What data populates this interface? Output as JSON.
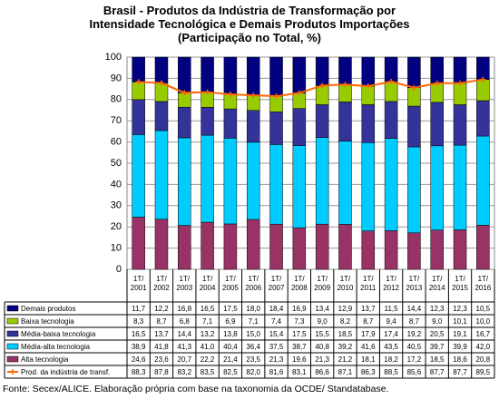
{
  "chart_data": {
    "type": "bar",
    "title": "Brasil - Produtos da Indústria de Transformação por\nIntensidade Tecnológica e Demais Produtos Importações\n(Participação no Total, %)",
    "categories": [
      "1T/\n2001",
      "1T/\n2002",
      "1T/\n2003",
      "1T/\n2004",
      "1T/\n2005",
      "1T/\n2006",
      "1T/\n2007",
      "1T/\n2008",
      "1T/\n2009",
      "1T/\n2010",
      "1T/\n2011",
      "1T/\n2012",
      "1T/\n2013",
      "1T/\n2014",
      "1T/\n2015",
      "1T/\n2016"
    ],
    "stacked": true,
    "ylim": [
      0,
      100
    ],
    "yticks": [
      0,
      10,
      20,
      30,
      40,
      50,
      60,
      70,
      80,
      90,
      100
    ],
    "grid": true,
    "series": [
      {
        "name": "Demais produtos",
        "color": "#000080",
        "values": [
          11.7,
          12.2,
          16.8,
          16.5,
          17.5,
          18.0,
          18.4,
          16.9,
          13.4,
          12.9,
          13.7,
          11.5,
          14.4,
          12.3,
          12.3,
          10.5
        ],
        "value_labels": [
          "11,7",
          "12,2",
          "16,8",
          "16,5",
          "17,5",
          "18,0",
          "18,4",
          "16,9",
          "13,4",
          "12,9",
          "13,7",
          "11,5",
          "14,4",
          "12,3",
          "12,3",
          "10,5"
        ]
      },
      {
        "name": "Baixa tecnologia",
        "color": "#99cc00",
        "values": [
          8.3,
          8.7,
          6.8,
          7.1,
          6.9,
          7.1,
          7.4,
          7.3,
          9.0,
          8.2,
          8.7,
          9.4,
          8.7,
          9.0,
          10.1,
          10.0
        ],
        "value_labels": [
          "8,3",
          "8,7",
          "6,8",
          "7,1",
          "6,9",
          "7,1",
          "7,4",
          "7,3",
          "9,0",
          "8,2",
          "8,7",
          "9,4",
          "8,7",
          "9,0",
          "10,1",
          "10,0"
        ]
      },
      {
        "name": "Média-baixa tecnologia",
        "color": "#333399",
        "values": [
          16.5,
          13.7,
          14.4,
          13.2,
          13.8,
          15.0,
          15.4,
          17.5,
          15.5,
          18.5,
          17.9,
          17.4,
          19.2,
          20.5,
          19.1,
          16.7
        ],
        "value_labels": [
          "16,5",
          "13,7",
          "14,4",
          "13,2",
          "13,8",
          "15,0",
          "15,4",
          "17,5",
          "15,5",
          "18,5",
          "17,9",
          "17,4",
          "19,2",
          "20,5",
          "19,1",
          "16,7"
        ]
      },
      {
        "name": "Média-alta tecnologia",
        "color": "#00ccff",
        "values": [
          38.9,
          41.8,
          41.3,
          41.0,
          40.4,
          36.4,
          37.5,
          38.7,
          40.8,
          39.2,
          41.6,
          43.5,
          40.5,
          39.7,
          39.9,
          42.0
        ],
        "value_labels": [
          "38,9",
          "41,8",
          "41,3",
          "41,0",
          "40,4",
          "36,4",
          "37,5",
          "38,7",
          "40,8",
          "39,2",
          "41,6",
          "43,5",
          "40,5",
          "39,7",
          "39,9",
          "42,0"
        ]
      },
      {
        "name": "Alta tecnologia",
        "color": "#993366",
        "values": [
          24.6,
          23.6,
          20.7,
          22.2,
          21.4,
          23.5,
          21.3,
          19.6,
          21.3,
          21.2,
          18.1,
          18.2,
          17.2,
          18.5,
          18.6,
          20.8
        ],
        "value_labels": [
          "24,6",
          "23,6",
          "20,7",
          "22,2",
          "21,4",
          "23,5",
          "21,3",
          "19,6",
          "21,3",
          "21,2",
          "18,1",
          "18,2",
          "17,2",
          "18,5",
          "18,6",
          "20,8"
        ]
      },
      {
        "name": "Prod. da indústria de transf.",
        "color": "#ff6600",
        "type": "line",
        "values": [
          88.3,
          87.8,
          83.2,
          83.5,
          82.5,
          82.0,
          81.6,
          83.1,
          86.6,
          87.1,
          86.3,
          88.5,
          85.6,
          87.7,
          87.7,
          89.5
        ],
        "value_labels": [
          "88,3",
          "87,8",
          "83,2",
          "83,5",
          "82,5",
          "82,0",
          "81,6",
          "83,1",
          "86,6",
          "87,1",
          "86,3",
          "88,5",
          "85,6",
          "87,7",
          "87,7",
          "89,5"
        ]
      }
    ],
    "source": "Fonte: Secex/ALICE. Elaboração própria com base na taxonomia da OCDE/ Standatabase."
  }
}
